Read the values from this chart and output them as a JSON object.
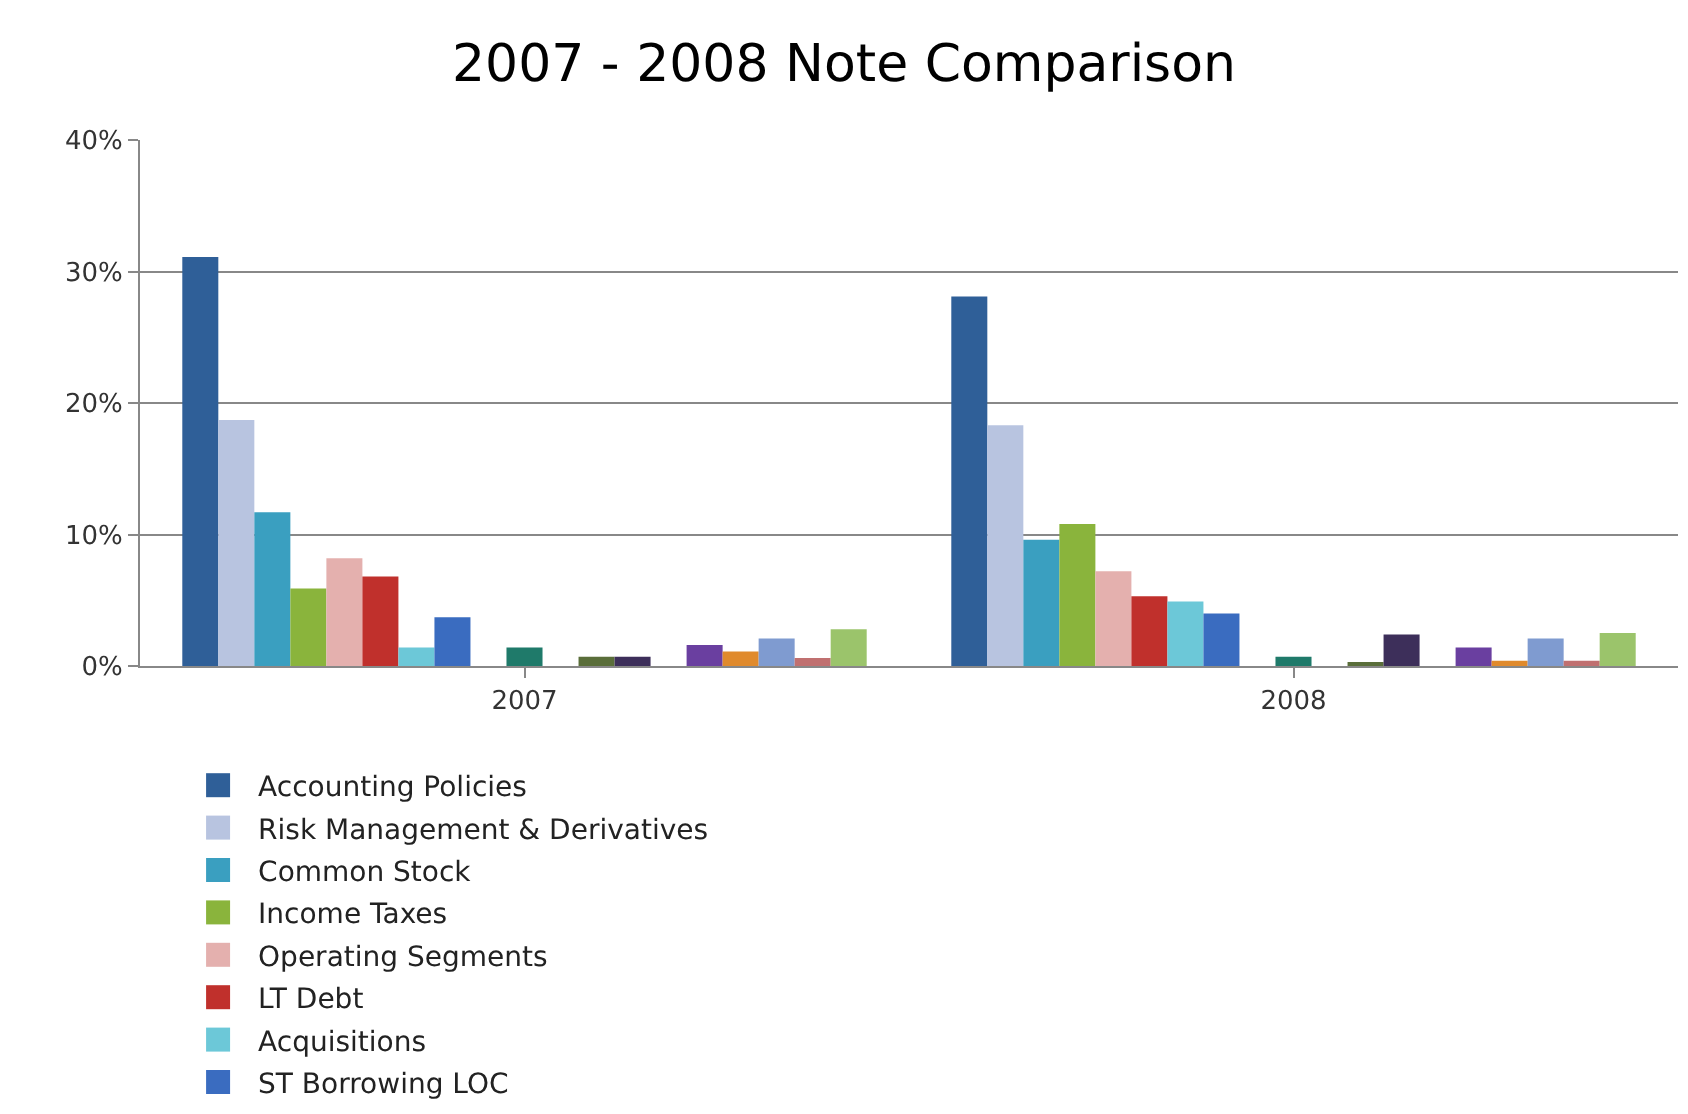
{
  "chart_data": {
    "type": "bar",
    "title": "2007 - 2008 Note Comparison",
    "categories": [
      "2007",
      "2008"
    ],
    "series": [
      {
        "name": "Accounting Policies",
        "color": "#2f5f98",
        "values": [
          31.1,
          28.1
        ]
      },
      {
        "name": "Risk Management & Derivatives",
        "color": "#b8c4e0",
        "values": [
          18.7,
          18.3
        ]
      },
      {
        "name": "Common Stock",
        "color": "#3a9fc0",
        "values": [
          11.7,
          9.6
        ]
      },
      {
        "name": "Income Taxes",
        "color": "#8ab43c",
        "values": [
          5.9,
          10.8
        ]
      },
      {
        "name": "Operating Segments",
        "color": "#e4b0ae",
        "values": [
          8.2,
          7.2
        ]
      },
      {
        "name": "LT Debt",
        "color": "#c0302c",
        "values": [
          6.8,
          5.3
        ]
      },
      {
        "name": "Acquisitions",
        "color": "#6cc8d8",
        "values": [
          1.4,
          4.9
        ]
      },
      {
        "name": "ST Borrowing LOC",
        "color": "#3a6cc0",
        "values": [
          3.7,
          4.0
        ]
      },
      {
        "color": "#8a3a3a",
        "values": [
          0,
          0
        ]
      },
      {
        "color": "#1f7a6a",
        "values": [
          1.4,
          0.7
        ]
      },
      {
        "color": "#5a8a9a",
        "values": [
          0,
          0
        ]
      },
      {
        "color": "#5a6e3a",
        "values": [
          0.7,
          0.2
        ]
      },
      {
        "color": "#3d2f5a",
        "values": [
          0.7,
          2.4
        ]
      },
      {
        "color": "#2a9a8a",
        "values": [
          0,
          0
        ]
      },
      {
        "color": "#6a3fa0",
        "values": [
          1.6,
          1.4
        ]
      },
      {
        "color": "#e08a2c",
        "values": [
          1.1,
          0.4
        ]
      },
      {
        "color": "#7f9bd0",
        "values": [
          2.1,
          2.1
        ]
      },
      {
        "color": "#c07070",
        "values": [
          0.6,
          0.4
        ]
      },
      {
        "color": "#9bc46b",
        "values": [
          2.8,
          2.5
        ]
      }
    ],
    "ylim": [
      0,
      40
    ],
    "yticks": [
      {
        "value": 0,
        "label": "0%"
      },
      {
        "value": 10,
        "label": "10%"
      },
      {
        "value": 20,
        "label": "20%"
      },
      {
        "value": 30,
        "label": "30%"
      },
      {
        "value": 40,
        "label": "40%"
      }
    ],
    "grid": "y",
    "legend": "bottom"
  }
}
